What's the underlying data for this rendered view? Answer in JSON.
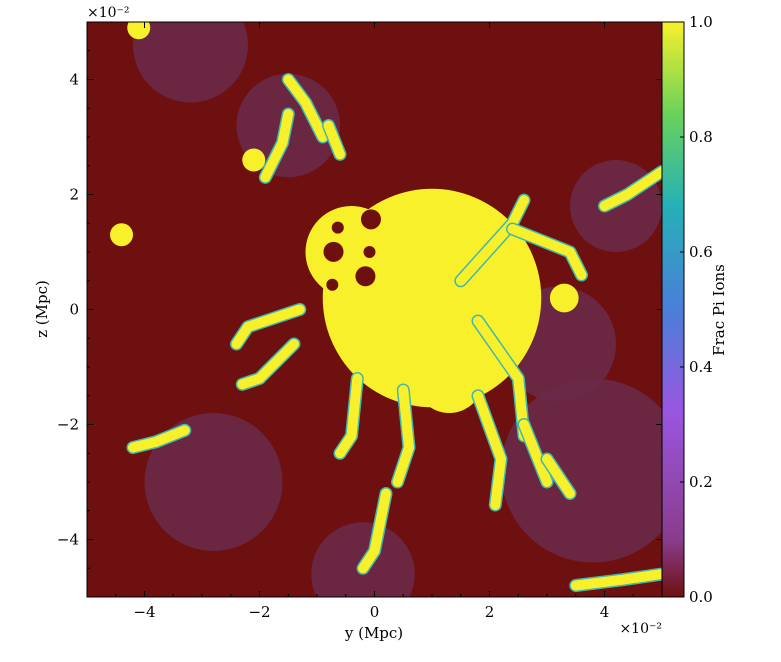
{
  "chart_data": {
    "type": "heatmap",
    "title": "",
    "xlabel": "y  (Mpc)",
    "ylabel": "z  (Mpc)",
    "colorbar_label": "Frac Pi Ions",
    "x_multiplier": "×10⁻²",
    "y_multiplier": "×10⁻²",
    "xlim": [
      -5,
      5
    ],
    "ylim": [
      -5,
      5
    ],
    "clim": [
      0,
      1
    ],
    "x_ticks": [
      -4,
      -2,
      0,
      2,
      4
    ],
    "y_ticks": [
      -4,
      -2,
      0,
      2,
      4
    ],
    "x_tick_labels": [
      "−4",
      "−2",
      "0",
      "2",
      "4"
    ],
    "y_tick_labels": [
      "−4",
      "−2",
      "0",
      "2",
      "4"
    ],
    "colorbar_ticks": [
      0.0,
      0.2,
      0.4,
      0.6,
      0.8,
      1.0
    ],
    "colorbar_tick_labels": [
      "0.0",
      "0.2",
      "0.4",
      "0.6",
      "0.8",
      "1.0"
    ],
    "colormap": "viridis",
    "background_value": 0.0,
    "background_color": "#6e1010",
    "low_color": "#6b2a4a",
    "high_color": "#f8f02a",
    "features": [
      {
        "kind": "core",
        "cx": 1.0,
        "cy": 0.2,
        "r": 1.9,
        "value": 1.0
      },
      {
        "kind": "blob",
        "cx": -0.4,
        "cy": 1.0,
        "r": 0.8,
        "value": 1.0
      },
      {
        "kind": "blob",
        "cx": 1.3,
        "cy": -1.2,
        "r": 0.6,
        "value": 1.0
      },
      {
        "kind": "filament",
        "points": [
          [
            1.5,
            0.5
          ],
          [
            2.4,
            1.5
          ],
          [
            2.6,
            1.9
          ]
        ],
        "value": 1.0
      },
      {
        "kind": "filament",
        "points": [
          [
            2.4,
            1.4
          ],
          [
            3.4,
            1.0
          ],
          [
            3.6,
            0.6
          ]
        ],
        "value": 1.0
      },
      {
        "kind": "filament",
        "points": [
          [
            1.8,
            -0.2
          ],
          [
            2.5,
            -1.2
          ],
          [
            2.6,
            -2.2
          ]
        ],
        "value": 1.0
      },
      {
        "kind": "filament",
        "points": [
          [
            2.6,
            -2.0
          ],
          [
            3.0,
            -3.0
          ]
        ],
        "value": 1.0
      },
      {
        "kind": "filament",
        "points": [
          [
            1.8,
            -1.5
          ],
          [
            2.2,
            -2.6
          ],
          [
            2.1,
            -3.4
          ]
        ],
        "value": 1.0
      },
      {
        "kind": "filament",
        "points": [
          [
            0.5,
            -1.4
          ],
          [
            0.6,
            -2.4
          ],
          [
            0.4,
            -3.0
          ]
        ],
        "value": 1.0
      },
      {
        "kind": "filament",
        "points": [
          [
            0.2,
            -3.2
          ],
          [
            0.0,
            -4.2
          ],
          [
            -0.2,
            -4.5
          ]
        ],
        "value": 1.0
      },
      {
        "kind": "filament",
        "points": [
          [
            -1.3,
            0.0
          ],
          [
            -2.2,
            -0.3
          ],
          [
            -2.4,
            -0.6
          ]
        ],
        "value": 1.0
      },
      {
        "kind": "filament",
        "points": [
          [
            -1.4,
            -0.6
          ],
          [
            -2.0,
            -1.2
          ],
          [
            -2.3,
            -1.3
          ]
        ],
        "value": 1.0
      },
      {
        "kind": "filament",
        "points": [
          [
            -1.5,
            4.0
          ],
          [
            -1.2,
            3.6
          ],
          [
            -0.9,
            3.0
          ]
        ],
        "value": 1.0
      },
      {
        "kind": "filament",
        "points": [
          [
            -1.5,
            3.4
          ],
          [
            -1.6,
            2.9
          ],
          [
            -1.9,
            2.3
          ]
        ],
        "value": 1.0
      },
      {
        "kind": "filament",
        "points": [
          [
            -0.8,
            3.2
          ],
          [
            -0.6,
            2.7
          ]
        ],
        "value": 1.0
      },
      {
        "kind": "filament",
        "points": [
          [
            -0.3,
            -1.2
          ],
          [
            -0.4,
            -2.2
          ],
          [
            -0.6,
            -2.5
          ]
        ],
        "value": 1.0
      },
      {
        "kind": "filament",
        "points": [
          [
            -3.3,
            -2.1
          ],
          [
            -3.8,
            -2.3
          ],
          [
            -4.2,
            -2.4
          ]
        ],
        "value": 1.0
      },
      {
        "kind": "filament",
        "points": [
          [
            5.0,
            2.4
          ],
          [
            4.4,
            2.0
          ],
          [
            4.0,
            1.8
          ]
        ],
        "value": 1.0
      },
      {
        "kind": "filament",
        "points": [
          [
            5.0,
            -4.6
          ],
          [
            4.3,
            -4.7
          ],
          [
            3.5,
            -4.8
          ]
        ],
        "value": 1.0
      },
      {
        "kind": "filament",
        "points": [
          [
            3.0,
            -2.6
          ],
          [
            3.4,
            -3.2
          ]
        ],
        "value": 1.0
      },
      {
        "kind": "blob",
        "cx": -4.4,
        "cy": 1.3,
        "r": 0.2,
        "value": 1.0
      },
      {
        "kind": "blob",
        "cx": -4.1,
        "cy": 4.9,
        "r": 0.2,
        "value": 1.0
      },
      {
        "kind": "blob",
        "cx": 3.3,
        "cy": 0.2,
        "r": 0.25,
        "value": 1.0
      },
      {
        "kind": "blob",
        "cx": -2.1,
        "cy": 2.6,
        "r": 0.2,
        "value": 1.0
      },
      {
        "kind": "diffuse",
        "cx": 3.8,
        "cy": -2.8,
        "r": 1.6,
        "value": 0.05
      },
      {
        "kind": "diffuse",
        "cx": -2.8,
        "cy": -3.0,
        "r": 1.2,
        "value": 0.05
      },
      {
        "kind": "diffuse",
        "cx": -3.2,
        "cy": 4.6,
        "r": 1.0,
        "value": 0.05
      },
      {
        "kind": "diffuse",
        "cx": 4.2,
        "cy": 1.8,
        "r": 0.8,
        "value": 0.05
      },
      {
        "kind": "diffuse",
        "cx": 3.2,
        "cy": -0.6,
        "r": 1.0,
        "value": 0.05
      },
      {
        "kind": "diffuse",
        "cx": -0.2,
        "cy": -4.6,
        "r": 0.9,
        "value": 0.05
      },
      {
        "kind": "diffuse",
        "cx": -1.5,
        "cy": 3.2,
        "r": 0.9,
        "value": 0.05
      }
    ]
  }
}
